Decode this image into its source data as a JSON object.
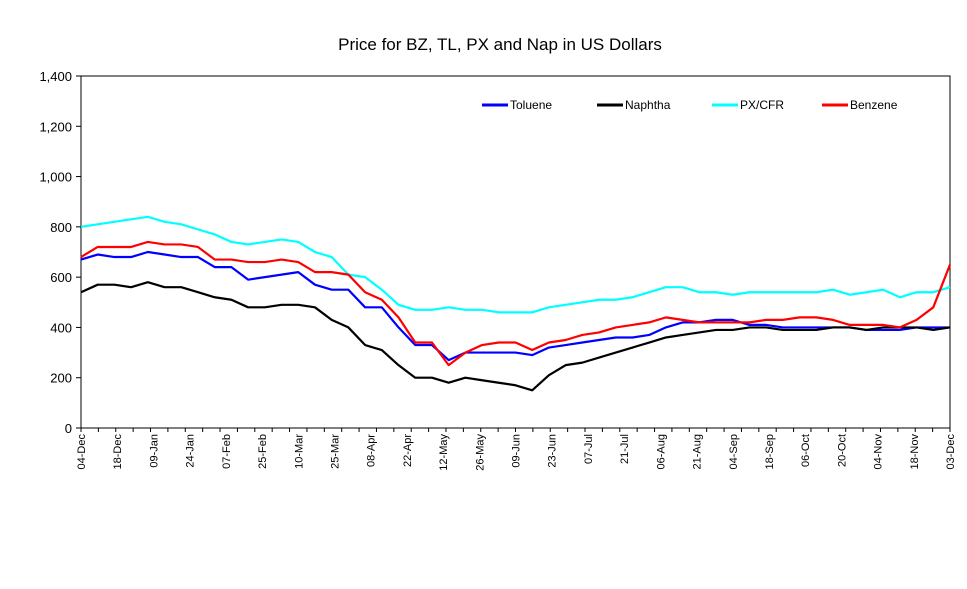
{
  "chart_data": {
    "type": "line",
    "title": "Price for BZ, TL, PX and Nap in US Dollars",
    "xlabel": "",
    "ylabel": "",
    "ylim": [
      0,
      1400
    ],
    "yticks": [
      0,
      200,
      400,
      600,
      800,
      1000,
      1200,
      1400
    ],
    "ytick_labels": [
      "0",
      "200",
      "400",
      "600",
      "800",
      "1,000",
      "1,200",
      "1,400"
    ],
    "grid": false,
    "legend_position": "top-right",
    "x_count": 53,
    "x_tick_labels": [
      "04-Dec",
      "18-Dec",
      "09-Jan",
      "24-Jan",
      "07-Feb",
      "25-Feb",
      "10-Mar",
      "25-Mar",
      "08-Apr",
      "22-Apr",
      "12-May",
      "26-May",
      "09-Jun",
      "23-Jun",
      "07-Jul",
      "21-Jul",
      "06-Aug",
      "21-Aug",
      "04-Sep",
      "18-Sep",
      "06-Oct",
      "20-Oct",
      "04-Nov",
      "18-Nov",
      "03-Dec"
    ],
    "series": [
      {
        "name": "Toluene",
        "color": "#0000ff",
        "values": [
          670,
          690,
          680,
          680,
          700,
          690,
          680,
          680,
          640,
          640,
          590,
          600,
          610,
          620,
          570,
          550,
          550,
          480,
          480,
          400,
          330,
          330,
          270,
          300,
          300,
          300,
          300,
          290,
          320,
          330,
          340,
          350,
          360,
          360,
          370,
          400,
          420,
          420,
          430,
          430,
          410,
          410,
          400,
          400,
          400,
          400,
          400,
          390,
          390,
          390,
          400,
          400,
          400
        ]
      },
      {
        "name": "Naphtha",
        "color": "#000000",
        "values": [
          540,
          570,
          570,
          560,
          580,
          560,
          560,
          540,
          520,
          510,
          480,
          480,
          490,
          490,
          480,
          430,
          400,
          330,
          310,
          250,
          200,
          200,
          180,
          200,
          190,
          180,
          170,
          150,
          210,
          250,
          260,
          280,
          300,
          320,
          340,
          360,
          370,
          380,
          390,
          390,
          400,
          400,
          390,
          390,
          390,
          400,
          400,
          390,
          400,
          400,
          400,
          390,
          400
        ]
      },
      {
        "name": "PX/CFR",
        "color": "#00ffff",
        "values": [
          800,
          810,
          820,
          830,
          840,
          820,
          810,
          790,
          770,
          740,
          730,
          740,
          750,
          740,
          700,
          680,
          610,
          600,
          550,
          490,
          470,
          470,
          480,
          470,
          470,
          460,
          460,
          460,
          480,
          490,
          500,
          510,
          510,
          520,
          540,
          560,
          560,
          540,
          540,
          530,
          540,
          540,
          540,
          540,
          540,
          550,
          530,
          540,
          550,
          520,
          540,
          540,
          560
        ]
      },
      {
        "name": "Benzene",
        "color": "#ff0000",
        "values": [
          680,
          720,
          720,
          720,
          740,
          730,
          730,
          720,
          670,
          670,
          660,
          660,
          670,
          660,
          620,
          620,
          610,
          540,
          510,
          440,
          340,
          340,
          250,
          300,
          330,
          340,
          340,
          310,
          340,
          350,
          370,
          380,
          400,
          410,
          420,
          440,
          430,
          420,
          420,
          420,
          420,
          430,
          430,
          440,
          440,
          430,
          410,
          410,
          410,
          400,
          430,
          480,
          650
        ]
      }
    ]
  }
}
